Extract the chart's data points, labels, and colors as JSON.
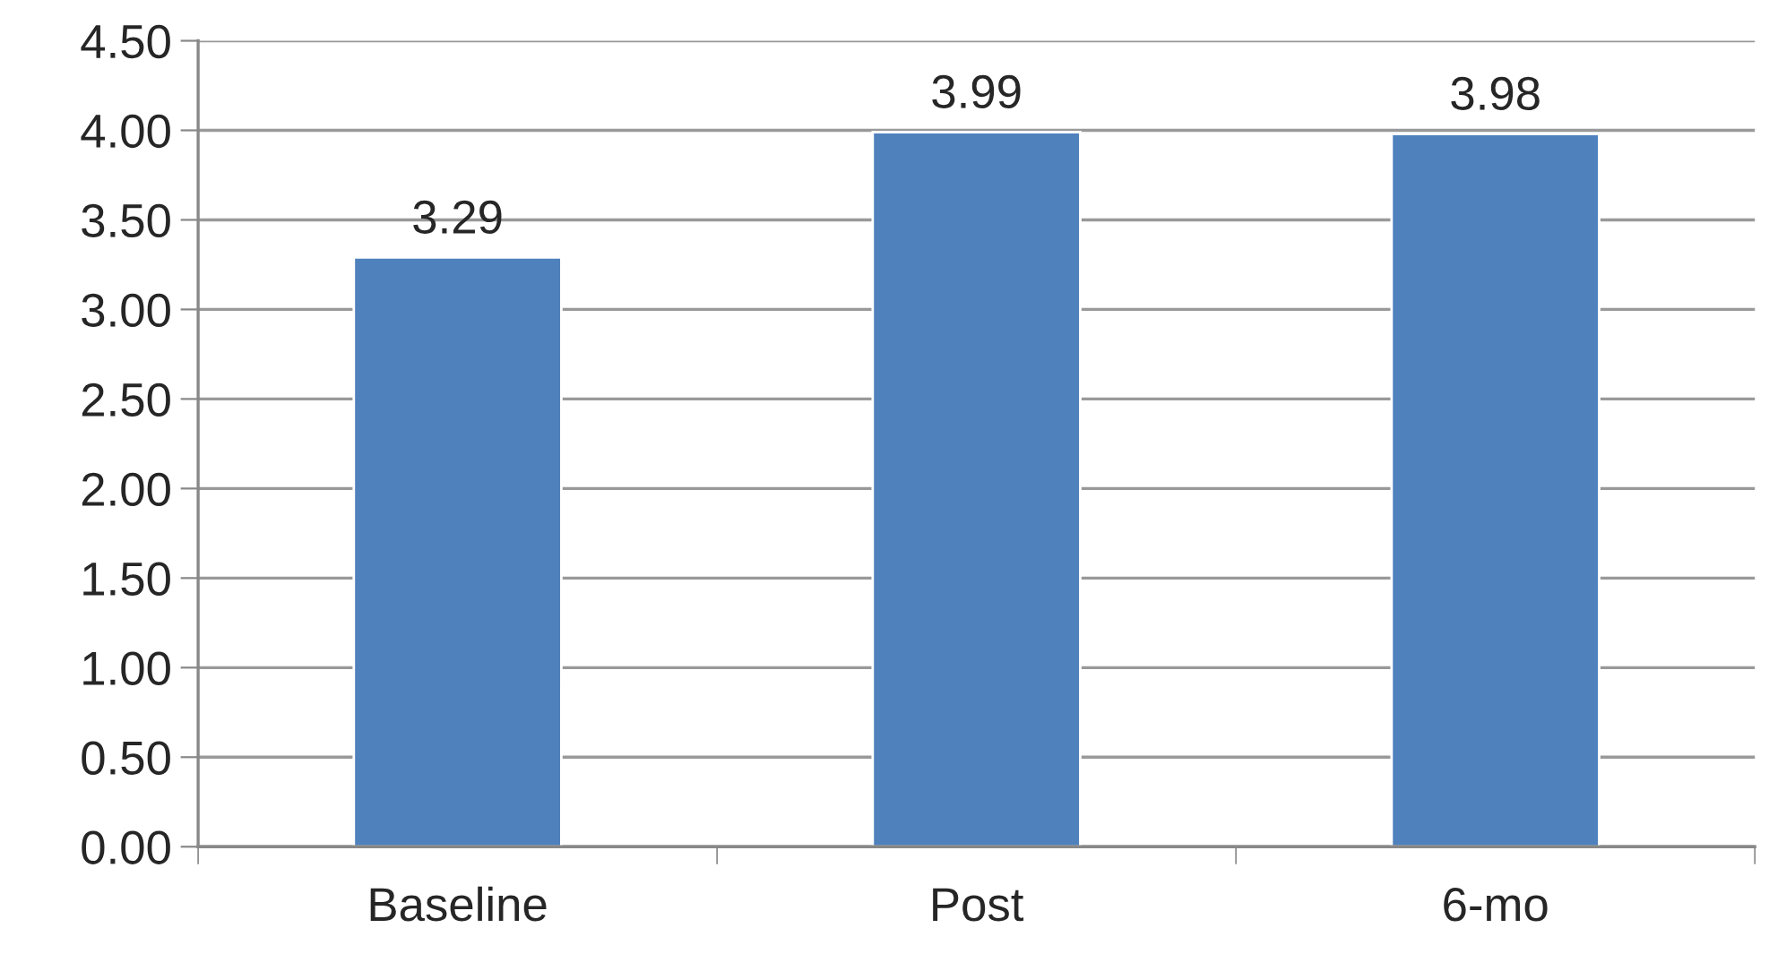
{
  "chart_data": {
    "type": "bar",
    "categories": [
      "Baseline",
      "Post",
      "6-mo"
    ],
    "values": [
      3.29,
      3.99,
      3.98
    ],
    "color": "#4f81bd",
    "data_labels": true,
    "ylim": [
      0,
      4.5
    ],
    "yticks": [
      {
        "value": 0,
        "label": "0.00"
      },
      {
        "value": 0.5,
        "label": "0.50"
      },
      {
        "value": 1,
        "label": "1.00"
      },
      {
        "value": 1.5,
        "label": "1.50"
      },
      {
        "value": 2,
        "label": "2.00"
      },
      {
        "value": 2.5,
        "label": "2.50"
      },
      {
        "value": 3,
        "label": "3.00"
      },
      {
        "value": 3.5,
        "label": "3.50"
      },
      {
        "value": 4,
        "label": "4.00"
      },
      {
        "value": 4.5,
        "label": "4.50"
      }
    ],
    "grid": "y",
    "legend": false
  }
}
